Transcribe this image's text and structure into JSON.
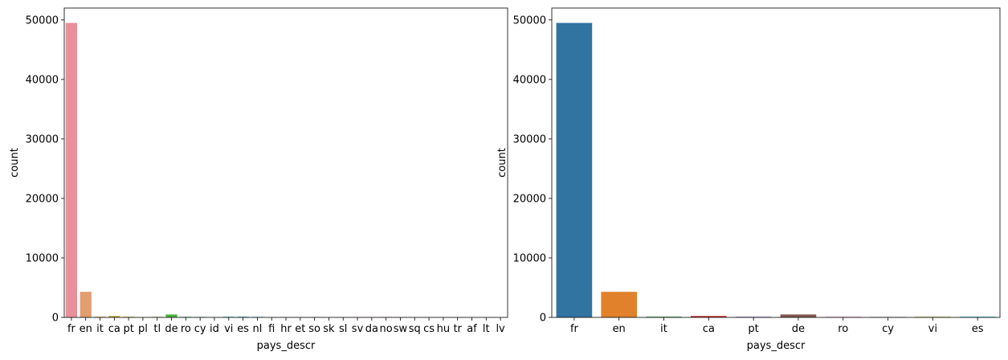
{
  "chart_data": [
    {
      "type": "bar",
      "title": "",
      "xlabel": "pays_descr",
      "ylabel": "count",
      "ylim": [
        0,
        52000
      ],
      "yticks": [
        0,
        10000,
        20000,
        30000,
        40000,
        50000
      ],
      "ytick_labels": [
        "0",
        "10000",
        "20000",
        "30000",
        "40000",
        "50000"
      ],
      "grid": false,
      "categories": [
        "fr",
        "en",
        "it",
        "ca",
        "pt",
        "pl",
        "tl",
        "de",
        "ro",
        "cy",
        "id",
        "vi",
        "es",
        "nl",
        "fi",
        "hr",
        "et",
        "so",
        "sk",
        "sl",
        "sv",
        "da",
        "no",
        "sw",
        "sq",
        "cs",
        "hu",
        "tr",
        "af",
        "lt",
        "lv"
      ],
      "values": [
        49500,
        4300,
        120,
        250,
        110,
        20,
        90,
        500,
        100,
        80,
        40,
        110,
        120,
        90,
        30,
        30,
        30,
        60,
        20,
        20,
        60,
        60,
        70,
        40,
        20,
        30,
        20,
        30,
        20,
        20,
        20
      ],
      "colors": [
        "#e8909c",
        "#e39d6f",
        "#d6a353",
        "#c2a73f",
        "#b2ab38",
        "#9eae32",
        "#7fb336",
        "#49b53d",
        "#3ab575",
        "#3cb392",
        "#3eb1a4",
        "#40afb2",
        "#42adc0",
        "#45aad1",
        "#4ea6e1",
        "#6b9fed",
        "#8b96ee",
        "#a48eee",
        "#bf86ee",
        "#d77be8",
        "#e775d9",
        "#ec72c8",
        "#f07ab6",
        "#f487a4",
        "#e8909c",
        "#e6948a",
        "#e39d6f",
        "#d6a353",
        "#c2a73f",
        "#b2ab38",
        "#9eae32"
      ]
    },
    {
      "type": "bar",
      "title": "",
      "xlabel": "pays_descr",
      "ylabel": "count",
      "ylim": [
        0,
        52000
      ],
      "yticks": [
        0,
        10000,
        20000,
        30000,
        40000,
        50000
      ],
      "ytick_labels": [
        "0",
        "10000",
        "20000",
        "30000",
        "40000",
        "50000"
      ],
      "grid": false,
      "categories": [
        "fr",
        "en",
        "it",
        "ca",
        "pt",
        "de",
        "ro",
        "cy",
        "vi",
        "es"
      ],
      "values": [
        49500,
        4300,
        120,
        250,
        110,
        500,
        100,
        80,
        110,
        120
      ],
      "colors": [
        "#3274a1",
        "#e1812c",
        "#3a923a",
        "#c03d3e",
        "#9372b2",
        "#845b53",
        "#d684bd",
        "#7f7f7f",
        "#a9aa35",
        "#2ebece"
      ]
    }
  ]
}
